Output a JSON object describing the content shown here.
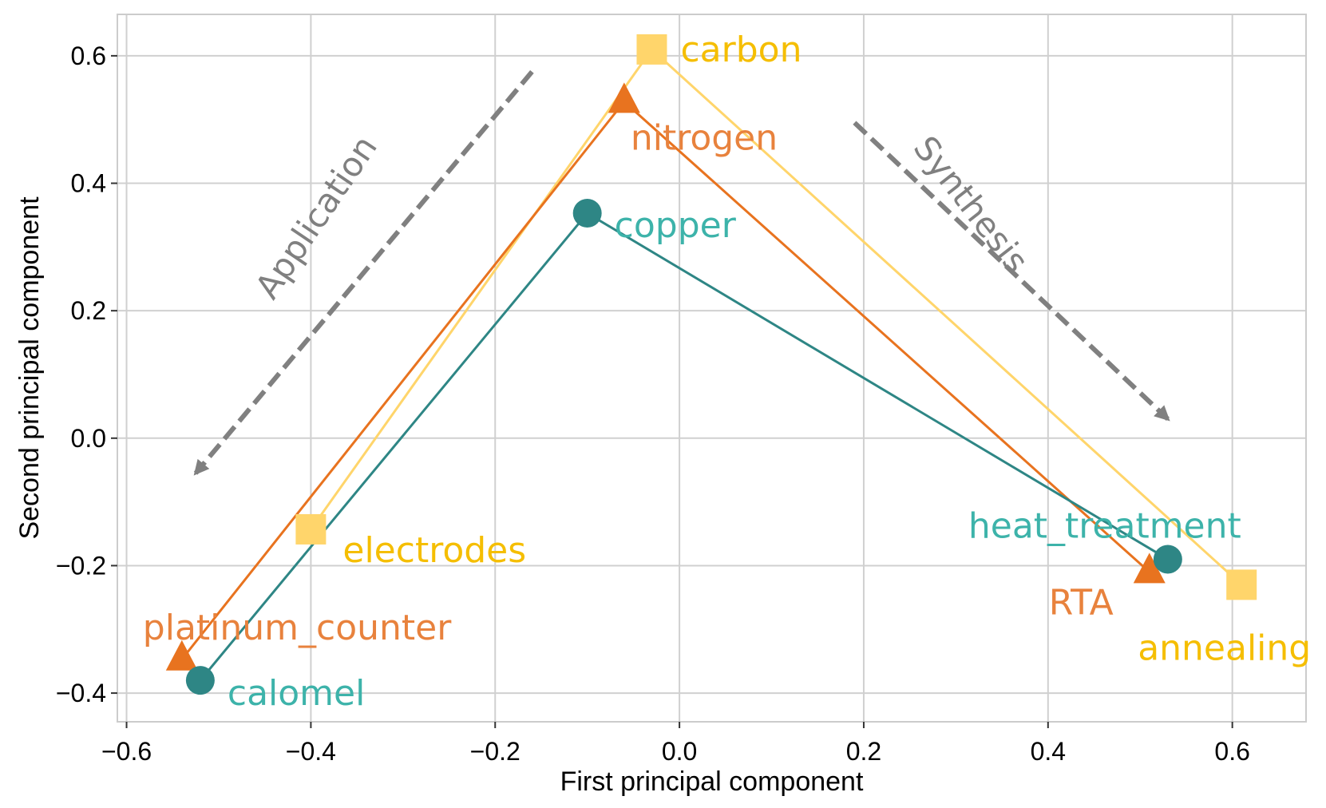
{
  "chart_data": {
    "type": "scatter",
    "xlabel": "First principal component",
    "ylabel": "Second principal component",
    "xlim": [
      -0.61,
      0.68
    ],
    "ylim": [
      -0.445,
      0.665
    ],
    "x_ticks": [
      -0.6,
      -0.4,
      -0.2,
      0.0,
      0.2,
      0.4,
      0.6
    ],
    "y_ticks": [
      -0.4,
      -0.2,
      0.0,
      0.2,
      0.4,
      0.6
    ],
    "x_tick_labels": [
      "−0.6",
      "−0.4",
      "−0.2",
      "0.0",
      "0.2",
      "0.4",
      "0.6"
    ],
    "y_tick_labels": [
      "−0.4",
      "−0.2",
      "0.0",
      "0.2",
      "0.4",
      "0.6"
    ],
    "grid": true,
    "series": [
      {
        "name": "yellow",
        "color": "#FFD56B",
        "label_color": "#F5BE00",
        "marker": "square",
        "points": [
          {
            "label": "electrodes",
            "x": -0.4,
            "y": -0.143
          },
          {
            "label": "carbon",
            "x": -0.03,
            "y": 0.61
          },
          {
            "label": "annealing",
            "x": 0.61,
            "y": -0.23
          }
        ]
      },
      {
        "name": "orange",
        "color": "#E8731F",
        "label_color": "#E8823D",
        "marker": "triangle",
        "points": [
          {
            "label": "platinum_counter",
            "x": -0.54,
            "y": -0.347
          },
          {
            "label": "nitrogen",
            "x": -0.06,
            "y": 0.528
          },
          {
            "label": "RTA",
            "x": 0.51,
            "y": -0.21
          }
        ]
      },
      {
        "name": "teal",
        "color": "#2E8685",
        "label_color": "#3DB3AA",
        "marker": "circle",
        "points": [
          {
            "label": "calomel",
            "x": -0.52,
            "y": -0.38
          },
          {
            "label": "copper",
            "x": -0.1,
            "y": 0.353
          },
          {
            "label": "heat_treatment",
            "x": 0.53,
            "y": -0.19
          }
        ]
      }
    ],
    "annotations": [
      {
        "text": "Application",
        "from": [
          -0.16,
          0.575
        ],
        "to": [
          -0.525,
          -0.055
        ],
        "color": "#808080"
      },
      {
        "text": "Synthesis",
        "from": [
          0.19,
          0.495
        ],
        "to": [
          0.53,
          0.03
        ],
        "color": "#808080"
      }
    ]
  }
}
